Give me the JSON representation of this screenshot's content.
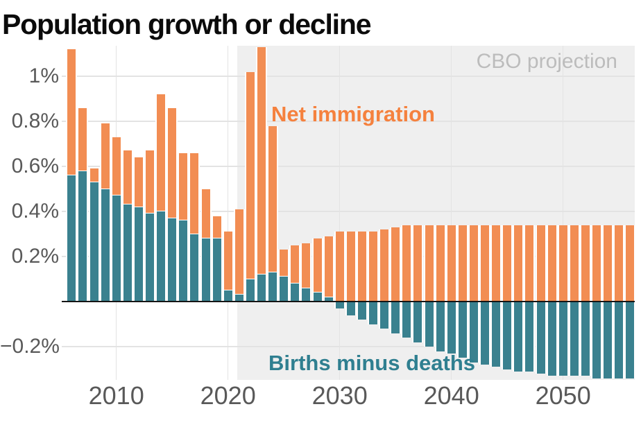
{
  "title": "Population growth or decline",
  "annotations": {
    "projection_label": "CBO projection",
    "immigration_label": "Net immigration",
    "births_label": "Births minus deaths"
  },
  "colors": {
    "immigration": "#f28d53",
    "births": "#3a818f",
    "immigration-label": "#f5813e",
    "births-label": "#2f7f90",
    "projection-label": "#bcbcbc",
    "projection-band": "#efefef",
    "grid": "#e3e3e3",
    "axis-text": "#595959",
    "baseline": "#151515"
  },
  "chart_data": {
    "type": "bar",
    "stacked": true,
    "title": "Population growth or decline",
    "unit": "percent",
    "xlabel": "",
    "ylabel": "",
    "grid": true,
    "legend_position": "inline-annotations",
    "ylim": [
      -0.35,
      1.14
    ],
    "projection_start": 2021.35,
    "y_ticks": [
      {
        "value": 1.0,
        "label": "1%"
      },
      {
        "value": 0.8,
        "label": "0.8%"
      },
      {
        "value": 0.6,
        "label": "0.6%"
      },
      {
        "value": 0.4,
        "label": "0.4%"
      },
      {
        "value": 0.2,
        "label": "0.2%"
      },
      {
        "value": -0.2,
        "label": "−0.2%"
      }
    ],
    "x_ticks": [
      {
        "value": 2010,
        "label": "2010"
      },
      {
        "value": 2020,
        "label": "2020"
      },
      {
        "value": 2030,
        "label": "2030"
      },
      {
        "value": 2040,
        "label": "2040"
      },
      {
        "value": 2050,
        "label": "2050"
      }
    ],
    "years": [
      2006,
      2007,
      2008,
      2009,
      2010,
      2011,
      2012,
      2013,
      2014,
      2015,
      2016,
      2017,
      2018,
      2019,
      2020,
      2021,
      2022,
      2023,
      2024,
      2025,
      2026,
      2027,
      2028,
      2029,
      2030,
      2031,
      2032,
      2033,
      2034,
      2035,
      2036,
      2037,
      2038,
      2039,
      2040,
      2041,
      2042,
      2043,
      2044,
      2045,
      2046,
      2047,
      2048,
      2049,
      2050,
      2051,
      2052,
      2053,
      2054,
      2055,
      2056
    ],
    "series": [
      {
        "name": "Net immigration",
        "color_key": "immigration",
        "values": [
          0.56,
          0.28,
          0.06,
          0.29,
          0.26,
          0.24,
          0.22,
          0.28,
          0.52,
          0.49,
          0.3,
          0.36,
          0.22,
          0.1,
          0.26,
          0.38,
          0.92,
          1.01,
          0.65,
          0.12,
          0.17,
          0.2,
          0.24,
          0.27,
          0.31,
          0.31,
          0.31,
          0.31,
          0.32,
          0.33,
          0.34,
          0.34,
          0.34,
          0.34,
          0.34,
          0.34,
          0.34,
          0.34,
          0.34,
          0.34,
          0.34,
          0.34,
          0.34,
          0.34,
          0.34,
          0.34,
          0.34,
          0.34,
          0.34,
          0.34,
          0.34
        ]
      },
      {
        "name": "Births minus deaths",
        "color_key": "births",
        "values": [
          0.56,
          0.58,
          0.53,
          0.5,
          0.47,
          0.43,
          0.42,
          0.39,
          0.4,
          0.37,
          0.36,
          0.3,
          0.28,
          0.28,
          0.05,
          0.03,
          0.1,
          0.12,
          0.13,
          0.11,
          0.08,
          0.06,
          0.04,
          0.02,
          -0.03,
          -0.06,
          -0.08,
          -0.1,
          -0.12,
          -0.14,
          -0.16,
          -0.18,
          -0.2,
          -0.22,
          -0.23,
          -0.25,
          -0.27,
          -0.28,
          -0.29,
          -0.3,
          -0.31,
          -0.31,
          -0.32,
          -0.33,
          -0.33,
          -0.33,
          -0.33,
          -0.34,
          -0.34,
          -0.34,
          -0.34
        ]
      }
    ]
  }
}
